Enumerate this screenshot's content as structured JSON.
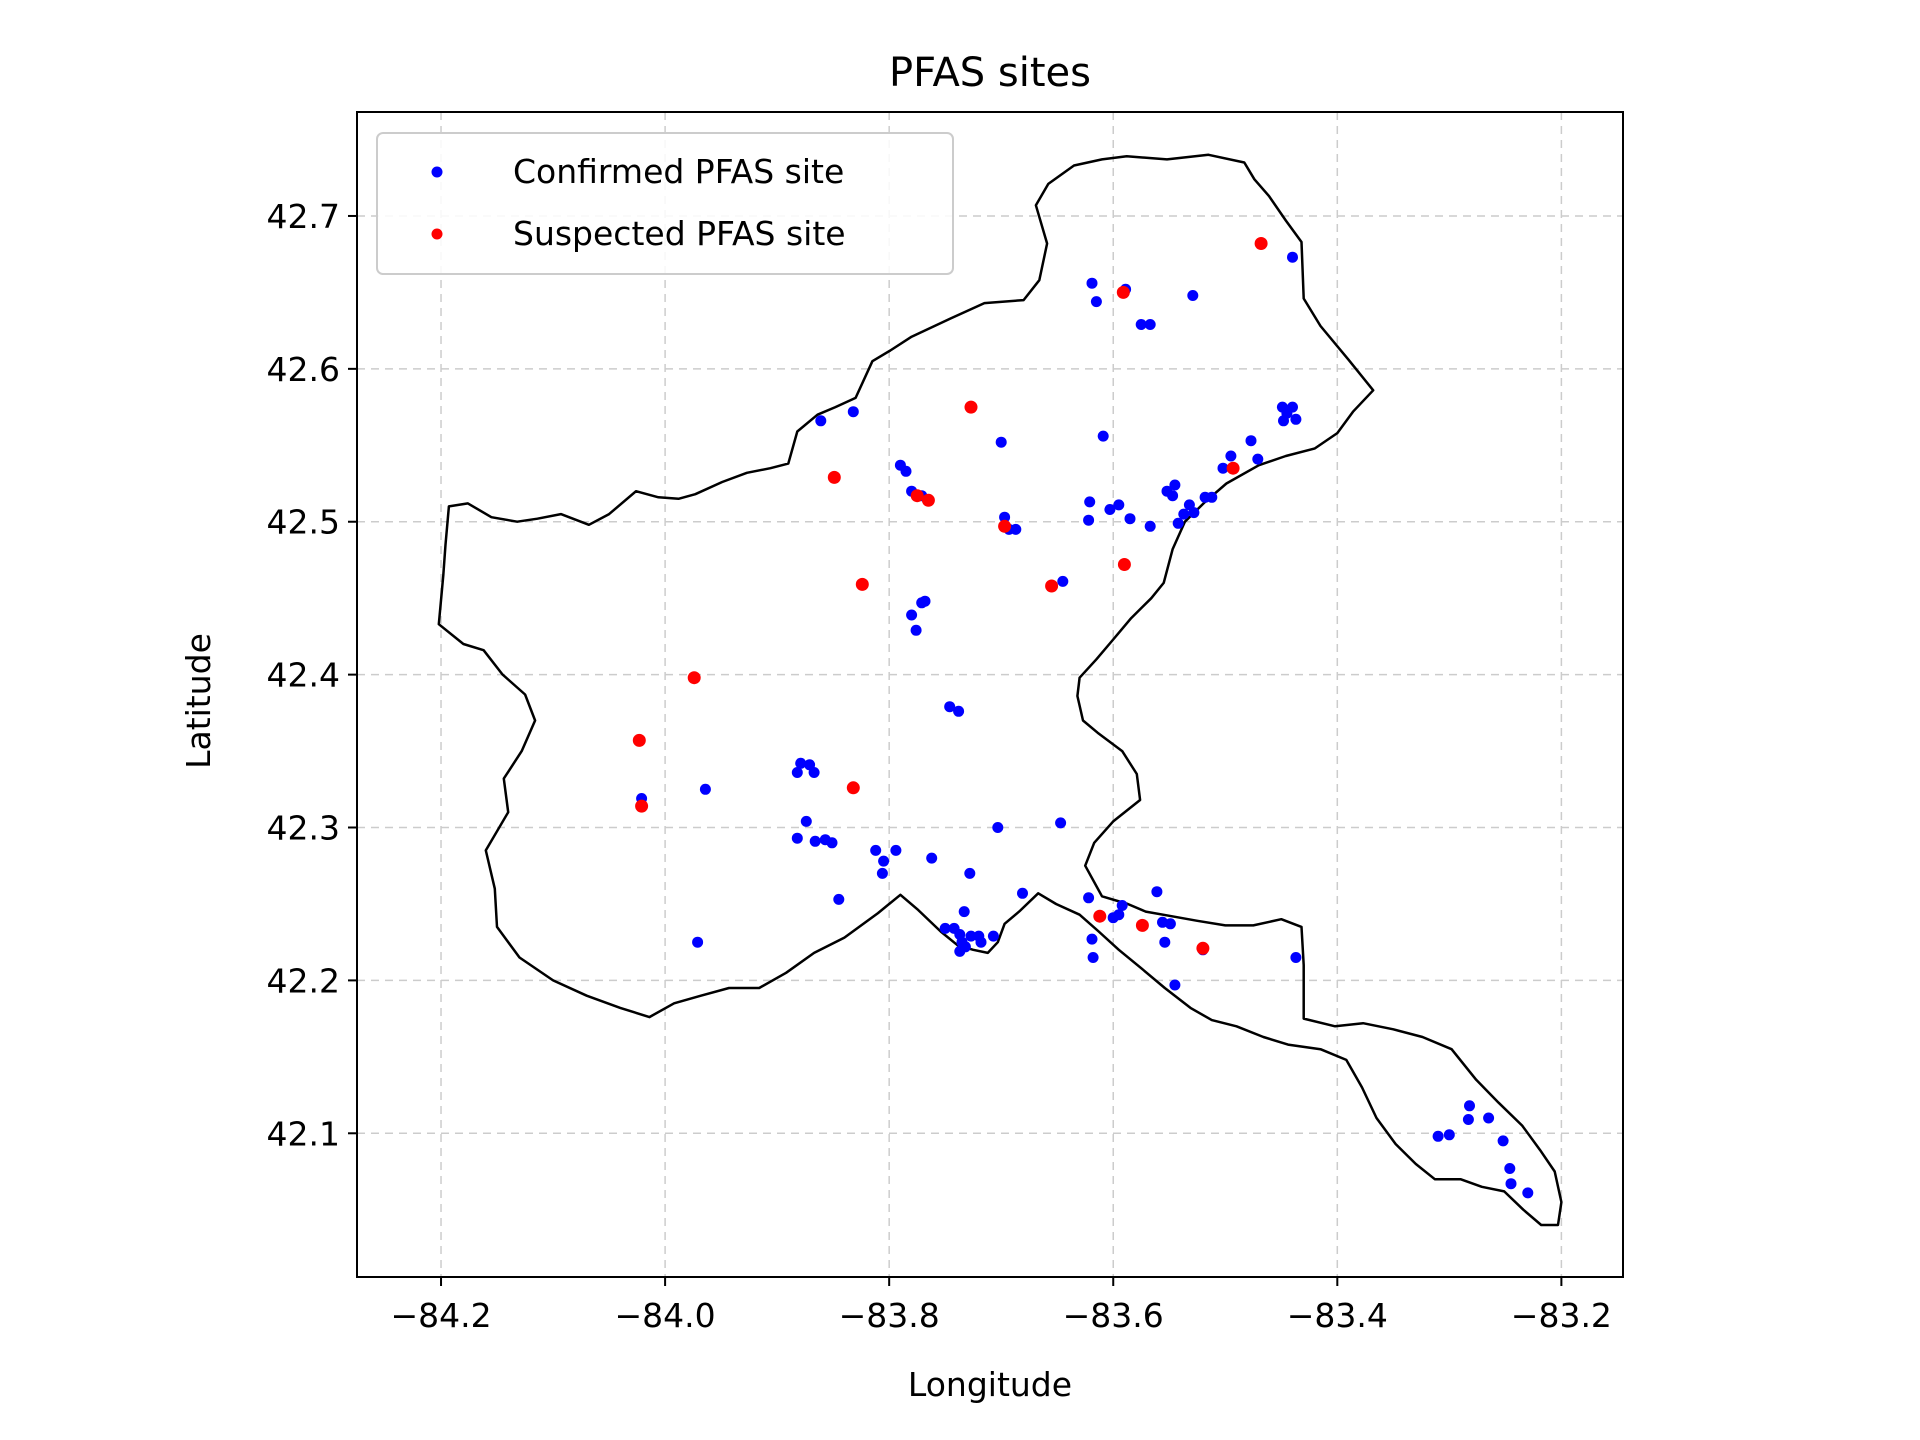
{
  "chart_data": {
    "type": "scatter",
    "title": "PFAS sites",
    "xlabel": "Longitude",
    "ylabel": "Latitude",
    "xlim": [
      -84.275,
      -83.145
    ],
    "ylim": [
      42.006,
      42.768
    ],
    "xticks": [
      -84.2,
      -84.0,
      -83.8,
      -83.6,
      -83.4,
      -83.2
    ],
    "yticks": [
      42.1,
      42.2,
      42.3,
      42.4,
      42.5,
      42.6,
      42.7
    ],
    "xtick_labels": [
      "−84.2",
      "−84.0",
      "−83.8",
      "−83.6",
      "−83.4",
      "−83.2"
    ],
    "ytick_labels": [
      "42.1",
      "42.2",
      "42.3",
      "42.4",
      "42.5",
      "42.6",
      "42.7"
    ],
    "grid": true,
    "legend_position": "top-left",
    "boundary": [
      [
        -84.202,
        42.433
      ],
      [
        -84.198,
        42.465
      ],
      [
        -84.196,
        42.485
      ],
      [
        -84.193,
        42.51
      ],
      [
        -84.176,
        42.512
      ],
      [
        -84.155,
        42.503
      ],
      [
        -84.132,
        42.5
      ],
      [
        -84.114,
        42.502
      ],
      [
        -84.093,
        42.505
      ],
      [
        -84.068,
        42.498
      ],
      [
        -84.05,
        42.505
      ],
      [
        -84.026,
        42.52
      ],
      [
        -84.006,
        42.516
      ],
      [
        -83.988,
        42.515
      ],
      [
        -83.973,
        42.518
      ],
      [
        -83.949,
        42.526
      ],
      [
        -83.927,
        42.532
      ],
      [
        -83.906,
        42.535
      ],
      [
        -83.89,
        42.538
      ],
      [
        -83.882,
        42.559
      ],
      [
        -83.864,
        42.57
      ],
      [
        -83.848,
        42.575
      ],
      [
        -83.83,
        42.581
      ],
      [
        -83.815,
        42.605
      ],
      [
        -83.799,
        42.612
      ],
      [
        -83.78,
        42.621
      ],
      [
        -83.745,
        42.633
      ],
      [
        -83.715,
        42.643
      ],
      [
        -83.68,
        42.645
      ],
      [
        -83.666,
        42.658
      ],
      [
        -83.659,
        42.682
      ],
      [
        -83.669,
        42.707
      ],
      [
        -83.658,
        42.721
      ],
      [
        -83.635,
        42.733
      ],
      [
        -83.61,
        42.737
      ],
      [
        -83.588,
        42.739
      ],
      [
        -83.552,
        42.737
      ],
      [
        -83.515,
        42.74
      ],
      [
        -83.483,
        42.735
      ],
      [
        -83.474,
        42.724
      ],
      [
        -83.461,
        42.713
      ],
      [
        -83.446,
        42.697
      ],
      [
        -83.432,
        42.683
      ],
      [
        -83.43,
        42.646
      ],
      [
        -83.415,
        42.628
      ],
      [
        -83.39,
        42.606
      ],
      [
        -83.368,
        42.586
      ],
      [
        -83.386,
        42.572
      ],
      [
        -83.4,
        42.558
      ],
      [
        -83.42,
        42.548
      ],
      [
        -83.446,
        42.543
      ],
      [
        -83.47,
        42.537
      ],
      [
        -83.499,
        42.525
      ],
      [
        -83.518,
        42.513
      ],
      [
        -83.536,
        42.5
      ],
      [
        -83.547,
        42.482
      ],
      [
        -83.555,
        42.46
      ],
      [
        -83.566,
        42.45
      ],
      [
        -83.584,
        42.437
      ],
      [
        -83.6,
        42.423
      ],
      [
        -83.615,
        42.41
      ],
      [
        -83.63,
        42.398
      ],
      [
        -83.632,
        42.386
      ],
      [
        -83.627,
        42.37
      ],
      [
        -83.614,
        42.362
      ],
      [
        -83.592,
        42.35
      ],
      [
        -83.579,
        42.335
      ],
      [
        -83.576,
        42.318
      ],
      [
        -83.6,
        42.304
      ],
      [
        -83.617,
        42.29
      ],
      [
        -83.625,
        42.275
      ],
      [
        -83.61,
        42.255
      ],
      [
        -83.587,
        42.25
      ],
      [
        -83.571,
        42.245
      ],
      [
        -83.548,
        42.242
      ],
      [
        -83.525,
        42.239
      ],
      [
        -83.5,
        42.236
      ],
      [
        -83.475,
        42.236
      ],
      [
        -83.45,
        42.24
      ],
      [
        -83.432,
        42.235
      ],
      [
        -83.43,
        42.21
      ],
      [
        -83.43,
        42.175
      ],
      [
        -83.402,
        42.17
      ],
      [
        -83.377,
        42.172
      ],
      [
        -83.35,
        42.168
      ],
      [
        -83.324,
        42.163
      ],
      [
        -83.298,
        42.155
      ],
      [
        -83.276,
        42.135
      ],
      [
        -83.256,
        42.12
      ],
      [
        -83.235,
        42.105
      ],
      [
        -83.219,
        42.089
      ],
      [
        -83.206,
        42.075
      ],
      [
        -83.2,
        42.055
      ],
      [
        -83.203,
        42.04
      ],
      [
        -83.218,
        42.04
      ],
      [
        -83.234,
        42.05
      ],
      [
        -83.251,
        42.062
      ],
      [
        -83.271,
        42.065
      ],
      [
        -83.29,
        42.07
      ],
      [
        -83.313,
        42.07
      ],
      [
        -83.33,
        42.08
      ],
      [
        -83.348,
        42.093
      ],
      [
        -83.365,
        42.11
      ],
      [
        -83.378,
        42.13
      ],
      [
        -83.392,
        42.148
      ],
      [
        -83.415,
        42.155
      ],
      [
        -83.444,
        42.158
      ],
      [
        -83.466,
        42.163
      ],
      [
        -83.49,
        42.17
      ],
      [
        -83.512,
        42.174
      ],
      [
        -83.531,
        42.182
      ],
      [
        -83.554,
        42.195
      ],
      [
        -83.575,
        42.208
      ],
      [
        -83.595,
        42.22
      ],
      [
        -83.613,
        42.232
      ],
      [
        -83.63,
        42.243
      ],
      [
        -83.651,
        42.25
      ],
      [
        -83.667,
        42.257
      ],
      [
        -83.684,
        42.245
      ],
      [
        -83.697,
        42.237
      ],
      [
        -83.703,
        42.225
      ],
      [
        -83.712,
        42.218
      ],
      [
        -83.725,
        42.22
      ],
      [
        -83.739,
        42.223
      ],
      [
        -83.754,
        42.232
      ],
      [
        -83.774,
        42.246
      ],
      [
        -83.79,
        42.256
      ],
      [
        -83.81,
        42.244
      ],
      [
        -83.84,
        42.228
      ],
      [
        -83.867,
        42.218
      ],
      [
        -83.892,
        42.205
      ],
      [
        -83.916,
        42.195
      ],
      [
        -83.943,
        42.195
      ],
      [
        -83.968,
        42.19
      ],
      [
        -83.992,
        42.185
      ],
      [
        -84.014,
        42.176
      ],
      [
        -84.04,
        42.182
      ],
      [
        -84.07,
        42.19
      ],
      [
        -84.1,
        42.2
      ],
      [
        -84.13,
        42.215
      ],
      [
        -84.15,
        42.235
      ],
      [
        -84.152,
        42.26
      ],
      [
        -84.16,
        42.285
      ],
      [
        -84.14,
        42.31
      ],
      [
        -84.144,
        42.332
      ],
      [
        -84.128,
        42.35
      ],
      [
        -84.116,
        42.37
      ],
      [
        -84.125,
        42.387
      ],
      [
        -84.145,
        42.4
      ],
      [
        -84.162,
        42.416
      ],
      [
        -84.18,
        42.42
      ],
      [
        -84.202,
        42.433
      ]
    ],
    "series": [
      {
        "name": "Confirmed PFAS site",
        "color": "#0000ff",
        "points": [
          [
            -83.861,
            42.566
          ],
          [
            -83.832,
            42.572
          ],
          [
            -83.79,
            42.537
          ],
          [
            -83.785,
            42.533
          ],
          [
            -83.78,
            42.52
          ],
          [
            -83.771,
            42.517
          ],
          [
            -83.78,
            42.439
          ],
          [
            -83.776,
            42.429
          ],
          [
            -83.771,
            42.447
          ],
          [
            -83.768,
            42.448
          ],
          [
            -83.746,
            42.379
          ],
          [
            -83.738,
            42.376
          ],
          [
            -83.7,
            42.552
          ],
          [
            -83.697,
            42.503
          ],
          [
            -83.693,
            42.495
          ],
          [
            -83.687,
            42.495
          ],
          [
            -83.645,
            42.461
          ],
          [
            -83.621,
            42.513
          ],
          [
            -83.622,
            42.501
          ],
          [
            -83.609,
            42.556
          ],
          [
            -83.603,
            42.508
          ],
          [
            -83.595,
            42.511
          ],
          [
            -83.585,
            42.502
          ],
          [
            -83.567,
            42.497
          ],
          [
            -83.552,
            42.52
          ],
          [
            -83.547,
            42.517
          ],
          [
            -83.545,
            42.524
          ],
          [
            -83.542,
            42.499
          ],
          [
            -83.537,
            42.505
          ],
          [
            -83.532,
            42.511
          ],
          [
            -83.528,
            42.506
          ],
          [
            -83.518,
            42.516
          ],
          [
            -83.512,
            42.516
          ],
          [
            -83.502,
            42.535
          ],
          [
            -83.495,
            42.543
          ],
          [
            -83.477,
            42.553
          ],
          [
            -83.471,
            42.541
          ],
          [
            -83.449,
            42.575
          ],
          [
            -83.445,
            42.571
          ],
          [
            -83.44,
            42.575
          ],
          [
            -83.448,
            42.566
          ],
          [
            -83.437,
            42.567
          ],
          [
            -83.619,
            42.656
          ],
          [
            -83.615,
            42.644
          ],
          [
            -83.589,
            42.652
          ],
          [
            -83.575,
            42.629
          ],
          [
            -83.567,
            42.629
          ],
          [
            -83.529,
            42.648
          ],
          [
            -83.44,
            42.673
          ],
          [
            -83.882,
            42.336
          ],
          [
            -83.879,
            42.342
          ],
          [
            -83.871,
            42.341
          ],
          [
            -83.867,
            42.336
          ],
          [
            -83.874,
            42.304
          ],
          [
            -83.882,
            42.293
          ],
          [
            -83.866,
            42.291
          ],
          [
            -83.857,
            42.292
          ],
          [
            -83.851,
            42.29
          ],
          [
            -83.812,
            42.285
          ],
          [
            -83.805,
            42.278
          ],
          [
            -83.806,
            42.27
          ],
          [
            -83.794,
            42.285
          ],
          [
            -83.762,
            42.28
          ],
          [
            -83.733,
            42.245
          ],
          [
            -83.75,
            42.234
          ],
          [
            -83.742,
            42.234
          ],
          [
            -83.737,
            42.23
          ],
          [
            -83.732,
            42.222
          ],
          [
            -83.727,
            42.229
          ],
          [
            -83.72,
            42.229
          ],
          [
            -83.718,
            42.225
          ],
          [
            -83.735,
            42.225
          ],
          [
            -83.737,
            42.219
          ],
          [
            -83.728,
            42.27
          ],
          [
            -83.707,
            42.229
          ],
          [
            -83.703,
            42.3
          ],
          [
            -83.681,
            42.257
          ],
          [
            -83.647,
            42.303
          ],
          [
            -83.845,
            42.253
          ],
          [
            -83.971,
            42.225
          ],
          [
            -84.021,
            42.319
          ],
          [
            -83.964,
            42.325
          ],
          [
            -83.622,
            42.254
          ],
          [
            -83.619,
            42.227
          ],
          [
            -83.618,
            42.215
          ],
          [
            -83.6,
            42.241
          ],
          [
            -83.595,
            42.243
          ],
          [
            -83.592,
            42.249
          ],
          [
            -83.561,
            42.258
          ],
          [
            -83.556,
            42.238
          ],
          [
            -83.549,
            42.237
          ],
          [
            -83.554,
            42.225
          ],
          [
            -83.545,
            42.197
          ],
          [
            -83.52,
            42.22
          ],
          [
            -83.437,
            42.215
          ],
          [
            -83.31,
            42.098
          ],
          [
            -83.3,
            42.099
          ],
          [
            -83.282,
            42.118
          ],
          [
            -83.283,
            42.109
          ],
          [
            -83.265,
            42.11
          ],
          [
            -83.252,
            42.095
          ],
          [
            -83.246,
            42.077
          ],
          [
            -83.245,
            42.067
          ],
          [
            -83.23,
            42.061
          ]
        ]
      },
      {
        "name": "Suspected PFAS site",
        "color": "#ff0000",
        "points": [
          [
            -83.468,
            42.682
          ],
          [
            -83.591,
            42.65
          ],
          [
            -83.727,
            42.575
          ],
          [
            -83.849,
            42.529
          ],
          [
            -83.775,
            42.517
          ],
          [
            -83.765,
            42.514
          ],
          [
            -83.824,
            42.459
          ],
          [
            -83.697,
            42.497
          ],
          [
            -83.655,
            42.458
          ],
          [
            -83.59,
            42.472
          ],
          [
            -83.493,
            42.535
          ],
          [
            -83.974,
            42.398
          ],
          [
            -84.023,
            42.357
          ],
          [
            -84.021,
            42.314
          ],
          [
            -83.832,
            42.326
          ],
          [
            -83.612,
            42.242
          ],
          [
            -83.574,
            42.236
          ],
          [
            -83.52,
            42.221
          ]
        ]
      }
    ]
  }
}
